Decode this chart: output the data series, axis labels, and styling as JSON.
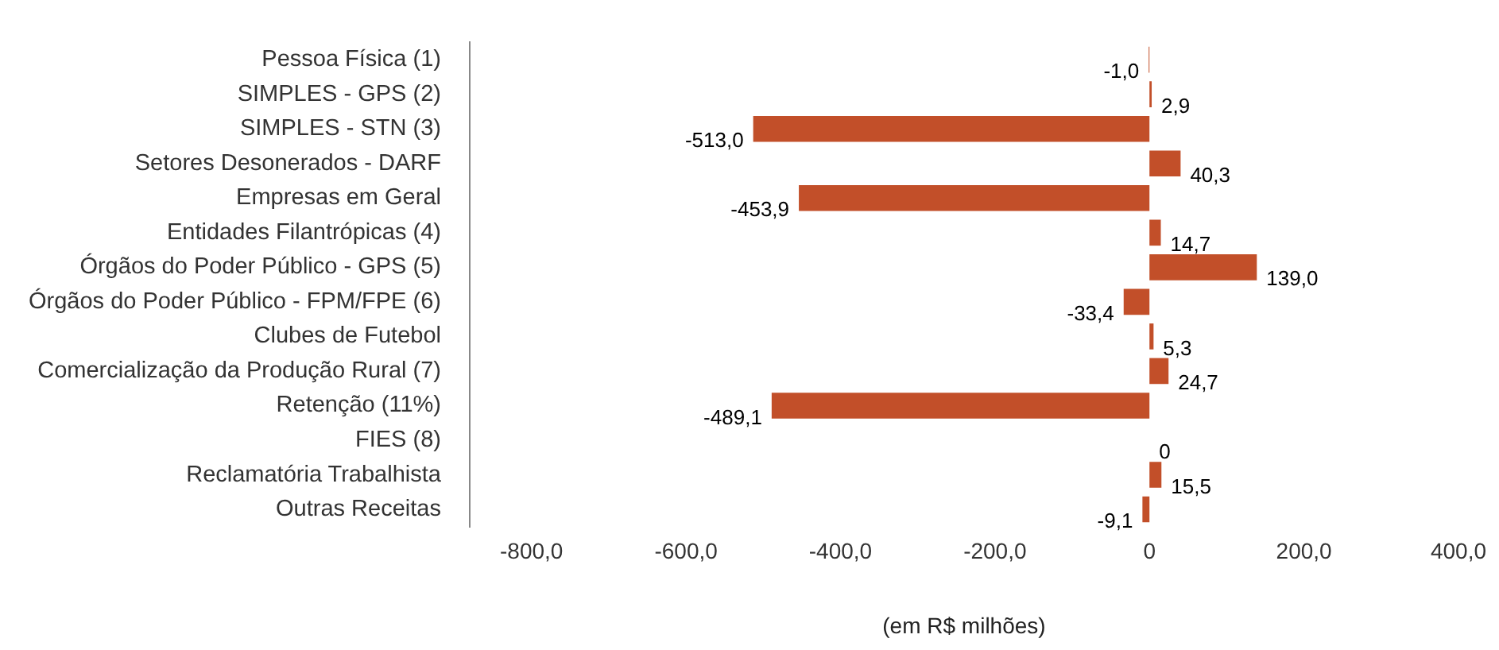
{
  "chart_data": {
    "type": "bar",
    "orientation": "horizontal",
    "xlabel": "(em R$ milhões)",
    "categories": [
      "Pessoa Física (1)",
      "SIMPLES - GPS (2)",
      "SIMPLES - STN (3)",
      "Setores Desonerados - DARF",
      "Empresas em Geral",
      "Entidades Filantrópicas (4)",
      "Órgãos do Poder Público - GPS (5)",
      "Órgãos do Poder Público - FPM/FPE (6)",
      "Clubes de Futebol",
      "Comercialização da Produção Rural (7)",
      "Retenção (11%)",
      "FIES (8)",
      "Reclamatória Trabalhista",
      "Outras Receitas"
    ],
    "values": [
      -1.0,
      2.9,
      -513.0,
      40.3,
      -453.9,
      14.7,
      139.0,
      -33.4,
      5.3,
      24.7,
      -489.1,
      0,
      15.5,
      -9.1
    ],
    "value_labels": [
      "-1,0",
      "2,9",
      "-513,0",
      "40,3",
      "-453,9",
      "14,7",
      "139,0",
      "-33,4",
      "5,3",
      "24,7",
      "-489,1",
      "0",
      "15,5",
      "-9,1"
    ],
    "color": "#c24f29",
    "xlim": [
      -880,
      400
    ],
    "xticks": [
      {
        "value": -800,
        "label": "-800,0"
      },
      {
        "value": -600,
        "label": "-600,0"
      },
      {
        "value": -400,
        "label": "-400,0"
      },
      {
        "value": -200,
        "label": "-200,0"
      },
      0,
      {
        "value": 200,
        "label": "200,0"
      },
      {
        "value": 400,
        "label": "400,0"
      }
    ],
    "grid": false,
    "legend": false
  }
}
